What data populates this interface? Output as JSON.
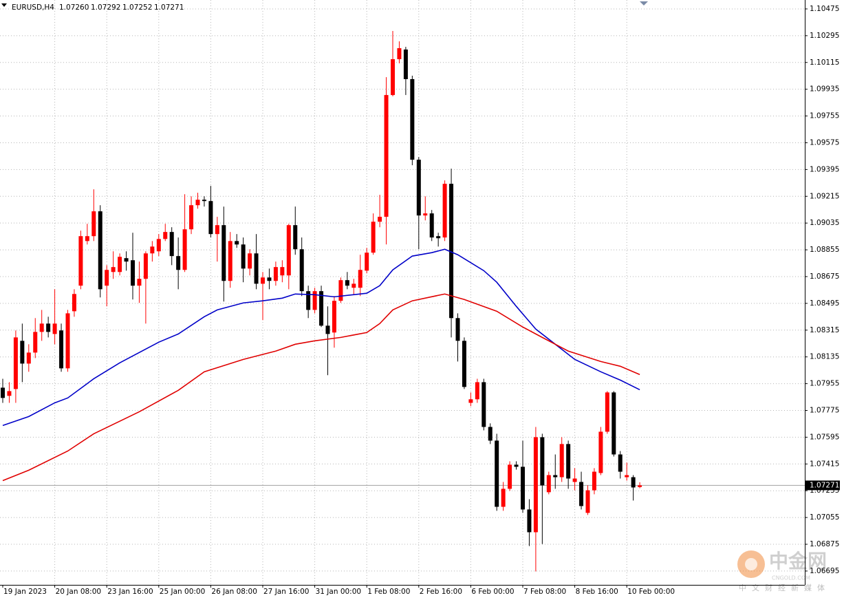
{
  "chart_data": {
    "type": "candlestick",
    "title": "EURUSD,H4",
    "quote": [
      {
        "value": 1.0726,
        "label": "1.07260"
      },
      {
        "value": 1.07292,
        "label": "1.07292"
      },
      {
        "value": 1.07252,
        "label": "1.07252"
      },
      {
        "value": 1.07271,
        "label": "1.07271"
      }
    ],
    "up_color": "#ff0000",
    "down_color": "#000000",
    "grid": true,
    "ylim": [
      1.06602,
      1.10535
    ],
    "yticks": [
      1.10475,
      1.10295,
      1.10115,
      1.09935,
      1.09755,
      1.09575,
      1.09395,
      1.09215,
      1.09035,
      1.08855,
      1.08675,
      1.08495,
      1.08315,
      1.08135,
      1.07955,
      1.07775,
      1.07595,
      1.07415,
      1.07235,
      1.07055,
      1.06875,
      1.06695
    ],
    "xticks": [
      {
        "value": 0,
        "label": "19 Jan 2023"
      },
      {
        "value": 8,
        "label": "20 Jan 08:00"
      },
      {
        "value": 16,
        "label": "23 Jan 16:00"
      },
      {
        "value": 24,
        "label": "25 Jan 00:00"
      },
      {
        "value": 32,
        "label": "26 Jan 08:00"
      },
      {
        "value": 40,
        "label": "27 Jan 16:00"
      },
      {
        "value": 48,
        "label": "31 Jan 00:00"
      },
      {
        "value": 56,
        "label": "1 Feb 08:00"
      },
      {
        "value": 64,
        "label": "2 Feb 16:00"
      },
      {
        "value": 72,
        "label": "6 Feb 00:00"
      },
      {
        "value": 80,
        "label": "7 Feb 08:00"
      },
      {
        "value": 88,
        "label": "8 Feb 16:00"
      },
      {
        "value": 96,
        "label": "10 Feb 00:00"
      }
    ],
    "current_price": 1.07271,
    "open": [
      1.07928,
      1.07873,
      1.07919,
      1.08243,
      1.0809,
      1.08164,
      1.08303,
      1.08359,
      1.08289,
      1.08313,
      1.08058,
      1.08442,
      1.08614,
      1.08914,
      1.08947,
      1.09114,
      1.08614,
      1.08706,
      1.08706,
      1.08799,
      1.08785,
      1.08614,
      1.0866,
      1.08831,
      1.08845,
      1.08928,
      1.08975,
      1.08813,
      1.0872,
      1.08993,
      1.09155,
      1.09192,
      1.09183,
      1.08961,
      1.09021,
      1.08646,
      1.08914,
      1.08891,
      1.08729,
      1.08831,
      1.08627,
      1.08669,
      1.08646,
      1.08683,
      1.08683,
      1.09021,
      1.08859,
      1.08577,
      1.08451,
      1.08577,
      1.08345,
      1.08299,
      1.08512,
      1.08651,
      1.086,
      1.086,
      1.08715,
      1.08836,
      1.09044,
      1.09077,
      1.09896,
      1.10137,
      1.10202,
      1.10003,
      1.09461,
      1.09086,
      1.091,
      1.08947,
      1.08938,
      1.09299,
      1.08396,
      1.08243,
      1.07826,
      1.0785,
      1.07965,
      1.07664,
      1.07572,
      1.07127,
      1.07248,
      1.0741,
      1.07396,
      1.07109,
      1.06956,
      1.07595,
      1.07225,
      1.0734,
      1.07326,
      1.07549,
      1.07294,
      1.07294,
      1.07086,
      1.07238,
      1.07354,
      1.07632,
      1.07896,
      1.07479,
      1.07326,
      1.07326,
      1.0726
    ],
    "high": [
      1.07988,
      1.07965,
      1.08313,
      1.08359,
      1.0822,
      1.08396,
      1.08451,
      1.08405,
      1.0859,
      1.08359,
      1.08451,
      1.0859,
      1.08984,
      1.0903,
      1.09262,
      1.09155,
      1.08752,
      1.08845,
      1.08831,
      1.08845,
      1.0897,
      1.08776,
      1.08845,
      1.08914,
      1.08961,
      1.0903,
      1.09007,
      1.08938,
      1.09229,
      1.09215,
      1.09239,
      1.09215,
      1.09285,
      1.09077,
      1.09146,
      1.08975,
      1.08961,
      1.08938,
      1.08859,
      1.08961,
      1.08706,
      1.08729,
      1.08776,
      1.08785,
      1.0903,
      1.09146,
      1.08938,
      1.08614,
      1.086,
      1.08614,
      1.08475,
      1.08544,
      1.08669,
      1.08706,
      1.0866,
      1.08822,
      1.08868,
      1.091,
      1.09225,
      1.10016,
      1.10327,
      1.10257,
      1.1022,
      1.10026,
      1.09479,
      1.09215,
      1.09123,
      1.0897,
      1.09322,
      1.09401,
      1.08428,
      1.08266,
      1.07896,
      1.07988,
      1.07988,
      1.07688,
      1.07618,
      1.07294,
      1.07433,
      1.07433,
      1.07572,
      1.07178,
      1.07664,
      1.07618,
      1.07363,
      1.07479,
      1.07595,
      1.07572,
      1.07387,
      1.07363,
      1.07271,
      1.07387,
      1.07664,
      1.07905,
      1.07905,
      1.07502,
      1.07424,
      1.0734,
      1.07292
    ],
    "low": [
      1.07826,
      1.07826,
      1.07826,
      1.07965,
      1.08035,
      1.08127,
      1.08243,
      1.08266,
      1.0822,
      1.08035,
      1.08035,
      1.08405,
      1.0859,
      1.08891,
      1.08914,
      1.08535,
      1.08475,
      1.0866,
      1.08683,
      1.08715,
      1.08521,
      1.08498,
      1.08359,
      1.08776,
      1.08813,
      1.08914,
      1.08752,
      1.0859,
      1.08706,
      1.08961,
      1.09132,
      1.09146,
      1.08938,
      1.08776,
      1.08507,
      1.086,
      1.08868,
      1.08637,
      1.08683,
      1.0859,
      1.08382,
      1.0859,
      1.08614,
      1.08637,
      1.0859,
      1.08822,
      1.08544,
      1.08396,
      1.08428,
      1.08336,
      1.08012,
      1.08197,
      1.08498,
      1.0859,
      1.08553,
      1.08544,
      1.08697,
      1.08822,
      1.09007,
      1.08891,
      1.09887,
      1.10109,
      1.09896,
      1.09424,
      1.08859,
      1.09053,
      1.08914,
      1.08877,
      1.08914,
      1.08266,
      1.08104,
      1.07919,
      1.07803,
      1.07826,
      1.07641,
      1.07549,
      1.071,
      1.071,
      1.07234,
      1.07377,
      1.07086,
      1.06863,
      1.06692,
      1.06877,
      1.07211,
      1.07248,
      1.07294,
      1.07248,
      1.07238,
      1.07109,
      1.07072,
      1.07211,
      1.0734,
      1.07618,
      1.07465,
      1.07317,
      1.07303,
      1.07169,
      1.07252
    ],
    "close": [
      1.07859,
      1.07905,
      1.08266,
      1.0809,
      1.08164,
      1.08303,
      1.08359,
      1.08303,
      1.08359,
      1.08058,
      1.08428,
      1.08558,
      1.08947,
      1.08947,
      1.09114,
      1.0859,
      1.0872,
      1.08739,
      1.08808,
      1.08776,
      1.08614,
      1.0866,
      1.08831,
      1.08877,
      1.08928,
      1.08975,
      1.08813,
      1.0872,
      1.08993,
      1.09155,
      1.09192,
      1.09183,
      1.08961,
      1.09021,
      1.08646,
      1.08914,
      1.08891,
      1.08729,
      1.08831,
      1.08627,
      1.08669,
      1.08646,
      1.08739,
      1.08739,
      1.09021,
      1.08859,
      1.08577,
      1.08451,
      1.08577,
      1.08345,
      1.08289,
      1.08512,
      1.08651,
      1.08614,
      1.08627,
      1.0872,
      1.08836,
      1.09044,
      1.09077,
      1.09896,
      1.10137,
      1.10211,
      1.10003,
      1.09461,
      1.09086,
      1.091,
      1.08938,
      1.08933,
      1.09299,
      1.08396,
      1.08243,
      1.07933,
      1.0785,
      1.07965,
      1.07664,
      1.07572,
      1.07127,
      1.07248,
      1.0741,
      1.07396,
      1.07109,
      1.06956,
      1.07595,
      1.07271,
      1.0734,
      1.07326,
      1.07549,
      1.07317,
      1.07317,
      1.07132,
      1.07238,
      1.07363,
      1.07632,
      1.07896,
      1.07479,
      1.07363,
      1.0734,
      1.07257,
      1.07271
    ],
    "series": [
      {
        "color": "#0000c8",
        "x": [
          0,
          4,
          8,
          10,
          14,
          18,
          24,
          27,
          31,
          33,
          37,
          40,
          43,
          45,
          48,
          51,
          56,
          58,
          60,
          63,
          66,
          68,
          70,
          74,
          76,
          79,
          82,
          85,
          88,
          92,
          95,
          98
        ],
        "values": [
          1.07674,
          1.07734,
          1.07826,
          1.07859,
          1.07988,
          1.08095,
          1.08234,
          1.08289,
          1.08405,
          1.08451,
          1.08498,
          1.08512,
          1.0853,
          1.08558,
          1.08553,
          1.08539,
          1.08563,
          1.08614,
          1.0872,
          1.08813,
          1.08836,
          1.08859,
          1.08822,
          1.08715,
          1.08637,
          1.08475,
          1.08322,
          1.0822,
          1.08118,
          1.08035,
          1.07979,
          1.07914
        ]
      },
      {
        "color": "#e00000",
        "x": [
          0,
          4,
          10,
          14,
          21,
          27,
          31,
          37,
          42,
          45,
          48,
          52,
          56,
          58,
          60,
          63,
          68,
          71,
          76,
          80,
          83,
          87,
          92,
          95,
          98
        ],
        "values": [
          1.07303,
          1.07373,
          1.07502,
          1.07618,
          1.07766,
          1.0791,
          1.08035,
          1.08118,
          1.08174,
          1.0822,
          1.08243,
          1.08266,
          1.08299,
          1.08359,
          1.08451,
          1.08512,
          1.08558,
          1.08521,
          1.08442,
          1.08336,
          1.08266,
          1.08174,
          1.08104,
          1.08072,
          1.08016
        ]
      }
    ],
    "watermark": {
      "name": "中金网",
      "site": "CNGOLD.COM",
      "slogan": "中文财经新媒体"
    }
  }
}
